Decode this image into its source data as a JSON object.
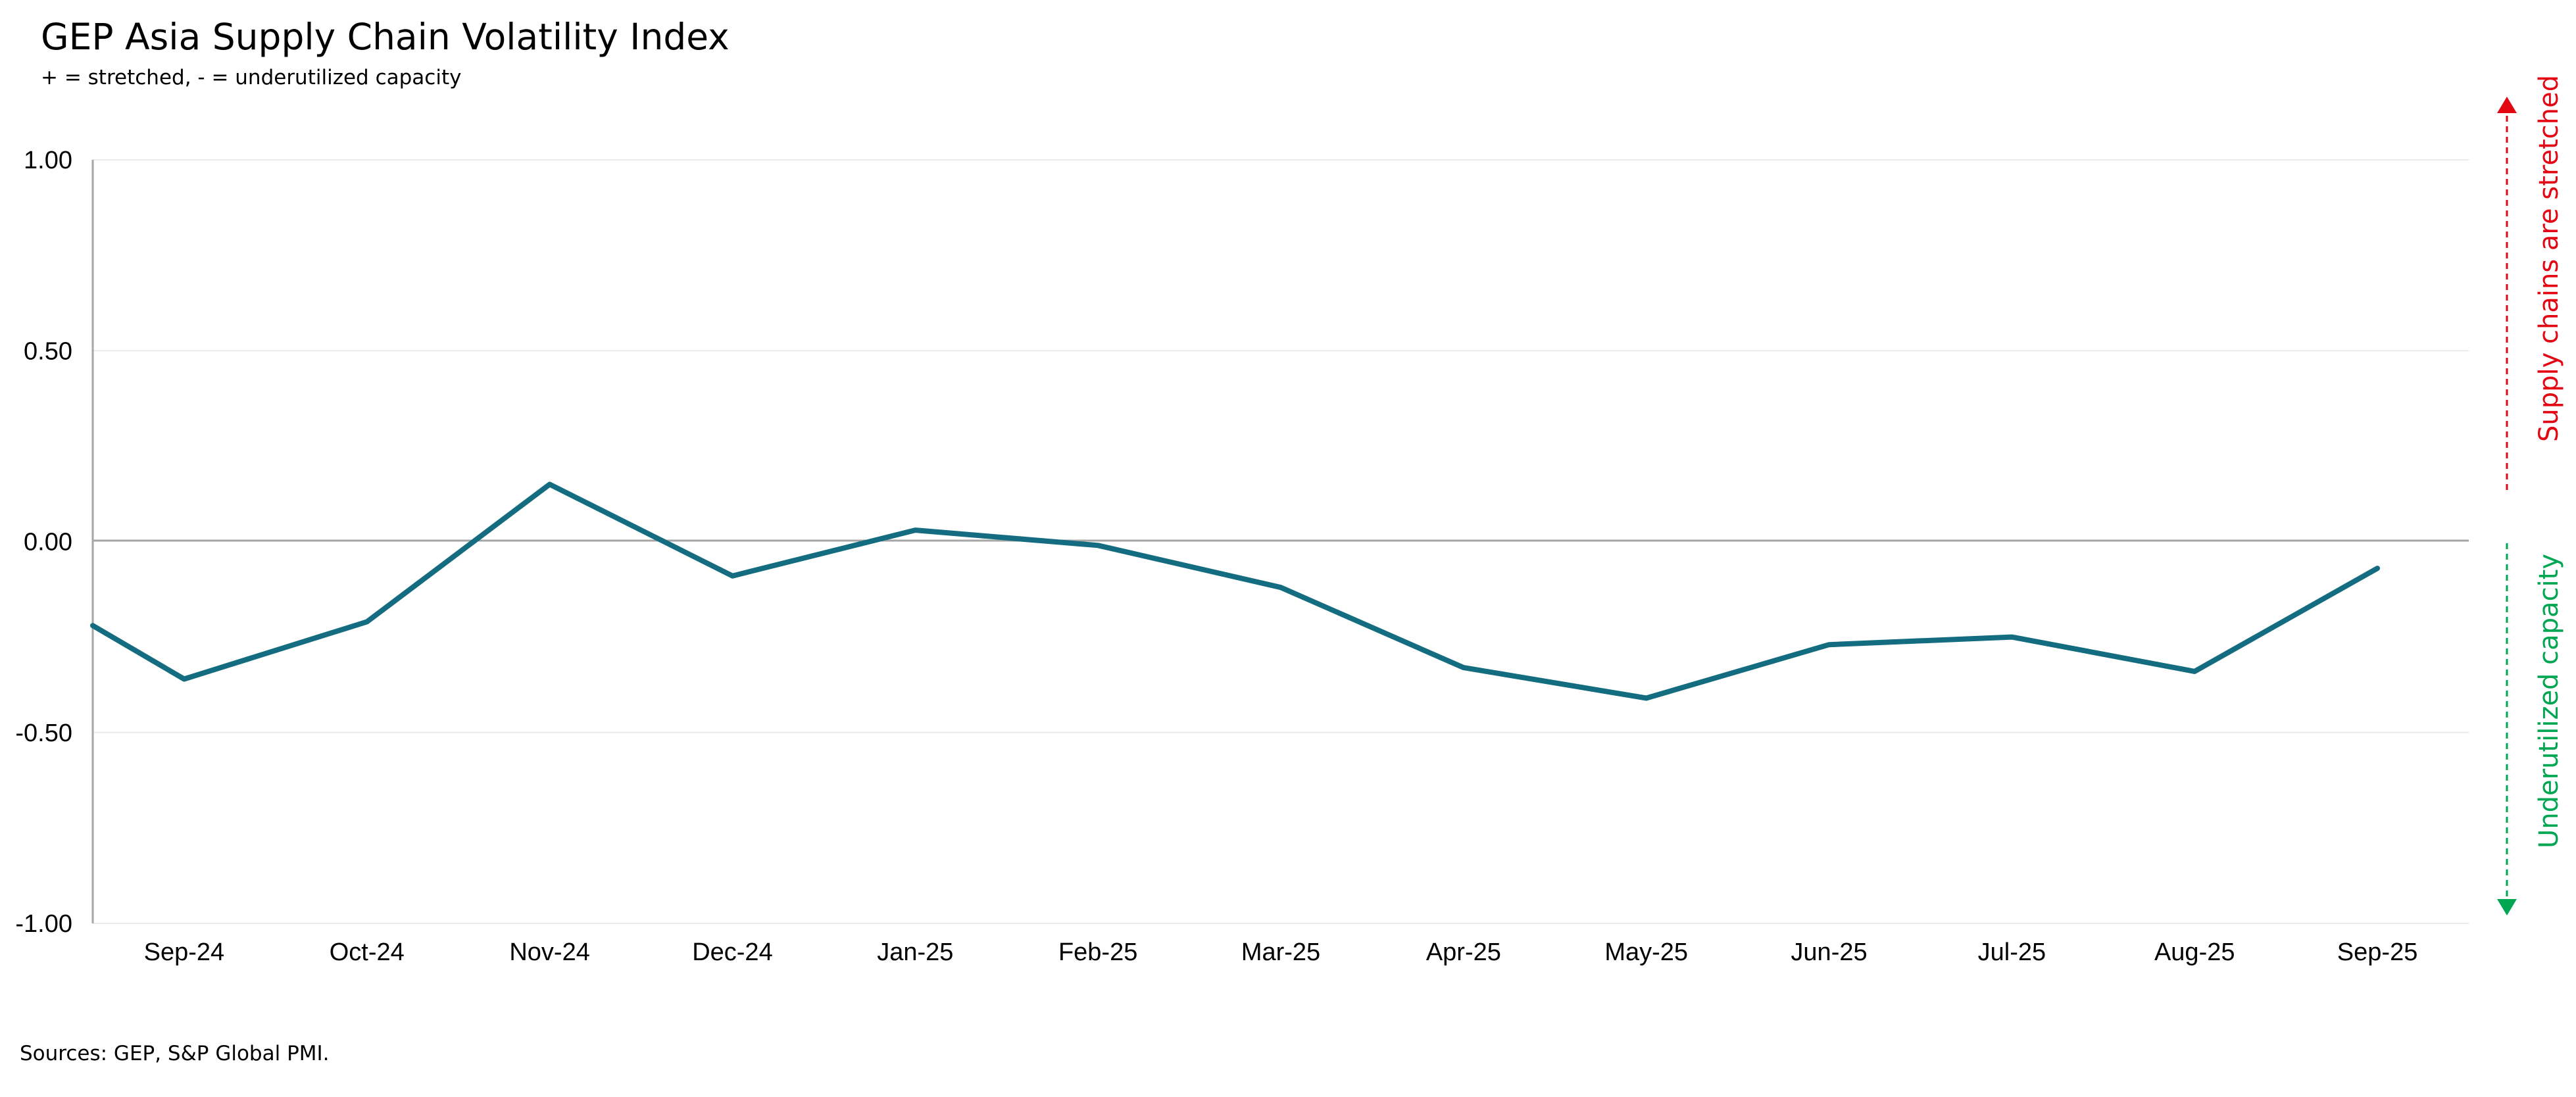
{
  "chart_data": {
    "type": "line",
    "title": "GEP Asia Supply Chain Volatility Index",
    "subtitle": "+ = stretched, - = underutilized capacity",
    "categories": [
      "Sep-24",
      "Oct-24",
      "Nov-24",
      "Dec-24",
      "Jan-25",
      "Feb-25",
      "Mar-25",
      "Apr-25",
      "May-25",
      "Jun-25",
      "Jul-25",
      "Aug-25",
      "Sep-25"
    ],
    "series": [
      {
        "values": [
          -0.36,
          -0.21,
          0.15,
          -0.09,
          0.03,
          -0.01,
          -0.12,
          -0.33,
          -0.41,
          -0.27,
          -0.25,
          -0.34,
          -0.07
        ],
        "leading_value": -0.22,
        "color": "#146C80"
      }
    ],
    "ylim": [
      -1.0,
      1.0
    ],
    "yticks": [
      "1.00",
      "0.50",
      "0.00",
      "-0.50",
      "-1.00"
    ],
    "ytick_values": [
      1.0,
      0.5,
      0.0,
      -0.5,
      -1.0
    ],
    "grid": true,
    "xlabel": "",
    "ylabel": "",
    "annotations": {
      "up_label": "Supply chains are stretched",
      "up_color": "#E30613",
      "down_label": "Underutilized capacity",
      "down_color": "#00A651"
    },
    "source": "Sources: GEP, S&P Global PMI."
  }
}
